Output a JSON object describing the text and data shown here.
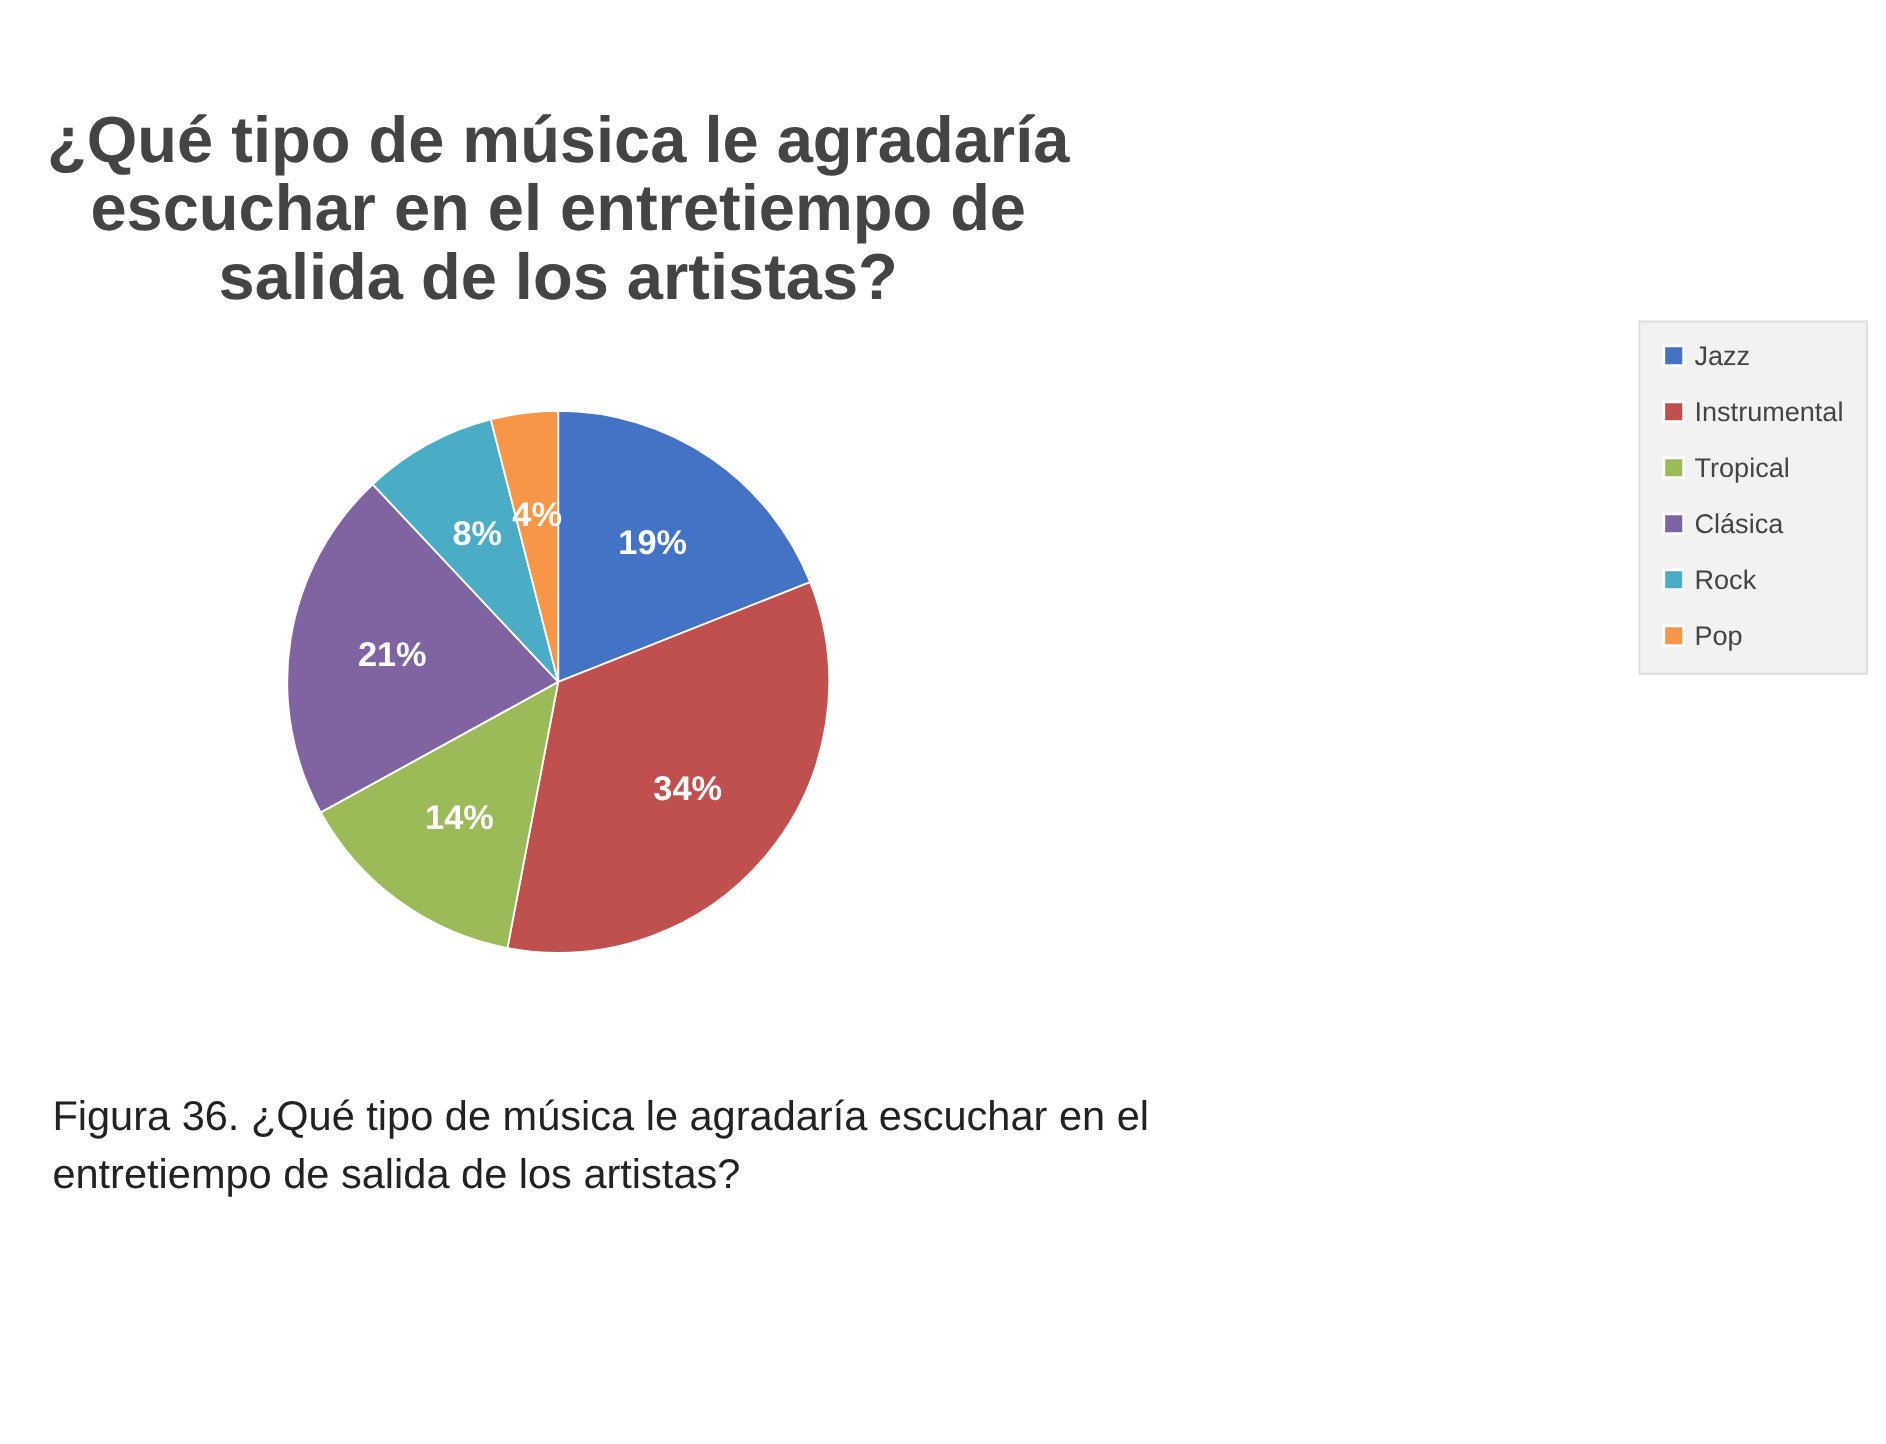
{
  "chart_data": {
    "type": "pie",
    "title": "¿Qué tipo de música le agradaría escuchar en el entretiempo de salida de los artistas?",
    "categories": [
      "Jazz",
      "Instrumental",
      "Tropical",
      "Clásica",
      "Rock",
      "Pop"
    ],
    "values": [
      19,
      34,
      14,
      21,
      8,
      4
    ],
    "colors": [
      "#4472c4",
      "#c0504d",
      "#9bbb59",
      "#8064a2",
      "#4bacc6",
      "#f79646"
    ],
    "value_labels": [
      "19%",
      "34%",
      "14%",
      "21%",
      "8%",
      "4%"
    ],
    "legend": "right",
    "annotations": [
      "Figura 36. ¿Qué tipo de música le agradaría escuchar en el entretiempo de salida de los artistas?"
    ]
  }
}
